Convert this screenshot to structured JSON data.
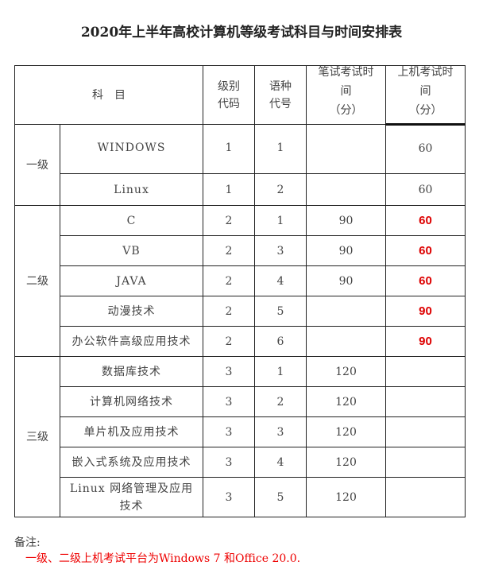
{
  "title": "2020年上半年高校计算机等级考试科目与时间安排表",
  "headers": {
    "subject": "科　目",
    "level_code": "级别代码",
    "lang_code": "语种代号",
    "written_time": "笔试考试时间",
    "written_unit": "（分）",
    "machine_time": "上机考试时间",
    "machine_unit": "（分）"
  },
  "levels": [
    "一级",
    "二级",
    "三级"
  ],
  "rows": [
    {
      "subject": "WINDOWS",
      "level_code": "1",
      "lang_code": "1",
      "written": "",
      "machine": "60"
    },
    {
      "subject": "Linux",
      "level_code": "1",
      "lang_code": "2",
      "written": "",
      "machine": "60"
    },
    {
      "subject": "C",
      "level_code": "2",
      "lang_code": "1",
      "written": "90",
      "machine": "60"
    },
    {
      "subject": "VB",
      "level_code": "2",
      "lang_code": "3",
      "written": "90",
      "machine": "60"
    },
    {
      "subject": "JAVA",
      "level_code": "2",
      "lang_code": "4",
      "written": "90",
      "machine": "60"
    },
    {
      "subject": "动漫技术",
      "level_code": "2",
      "lang_code": "5",
      "written": "",
      "machine": "90"
    },
    {
      "subject": "办公软件高级应用技术",
      "level_code": "2",
      "lang_code": "6",
      "written": "",
      "machine": "90"
    },
    {
      "subject": "数据库技术",
      "level_code": "3",
      "lang_code": "1",
      "written": "120",
      "machine": ""
    },
    {
      "subject": "计算机网络技术",
      "level_code": "3",
      "lang_code": "2",
      "written": "120",
      "machine": ""
    },
    {
      "subject": "单片机及应用技术",
      "level_code": "3",
      "lang_code": "3",
      "written": "120",
      "machine": ""
    },
    {
      "subject": "嵌入式系统及应用技术",
      "level_code": "3",
      "lang_code": "4",
      "written": "120",
      "machine": ""
    },
    {
      "subject": "Linux 网络管理及应用技术",
      "level_code": "3",
      "lang_code": "5",
      "written": "120",
      "machine": ""
    }
  ],
  "highlight_color": "#dd0000",
  "note": {
    "label": "备注:",
    "text": "一级、二级上机考试平台为Windows 7 和Office 20.0."
  }
}
